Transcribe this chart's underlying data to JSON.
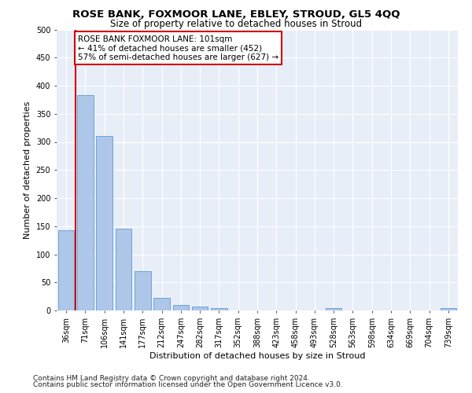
{
  "title": "ROSE BANK, FOXMOOR LANE, EBLEY, STROUD, GL5 4QQ",
  "subtitle": "Size of property relative to detached houses in Stroud",
  "xlabel": "Distribution of detached houses by size in Stroud",
  "ylabel": "Number of detached properties",
  "categories": [
    "36sqm",
    "71sqm",
    "106sqm",
    "141sqm",
    "177sqm",
    "212sqm",
    "247sqm",
    "282sqm",
    "317sqm",
    "352sqm",
    "388sqm",
    "423sqm",
    "458sqm",
    "493sqm",
    "528sqm",
    "563sqm",
    "598sqm",
    "634sqm",
    "669sqm",
    "704sqm",
    "739sqm"
  ],
  "values": [
    142,
    383,
    310,
    146,
    70,
    22,
    10,
    7,
    4,
    0,
    0,
    0,
    0,
    0,
    4,
    0,
    0,
    0,
    0,
    0,
    4
  ],
  "bar_color": "#aec6e8",
  "bar_edge_color": "#5b9bd5",
  "highlight_line_color": "#cc0000",
  "annotation_text": "ROSE BANK FOXMOOR LANE: 101sqm\n← 41% of detached houses are smaller (452)\n57% of semi-detached houses are larger (627) →",
  "annotation_box_color": "#ffffff",
  "annotation_box_edge_color": "#cc0000",
  "ylim": [
    0,
    500
  ],
  "yticks": [
    0,
    50,
    100,
    150,
    200,
    250,
    300,
    350,
    400,
    450,
    500
  ],
  "footer1": "Contains HM Land Registry data © Crown copyright and database right 2024.",
  "footer2": "Contains public sector information licensed under the Open Government Licence v3.0.",
  "bg_color": "#ffffff",
  "plot_bg_color": "#e8eef8",
  "grid_color": "#ffffff",
  "title_fontsize": 9.5,
  "subtitle_fontsize": 8.5,
  "axis_label_fontsize": 8,
  "tick_fontsize": 7,
  "annotation_fontsize": 7.5,
  "footer_fontsize": 6.5
}
